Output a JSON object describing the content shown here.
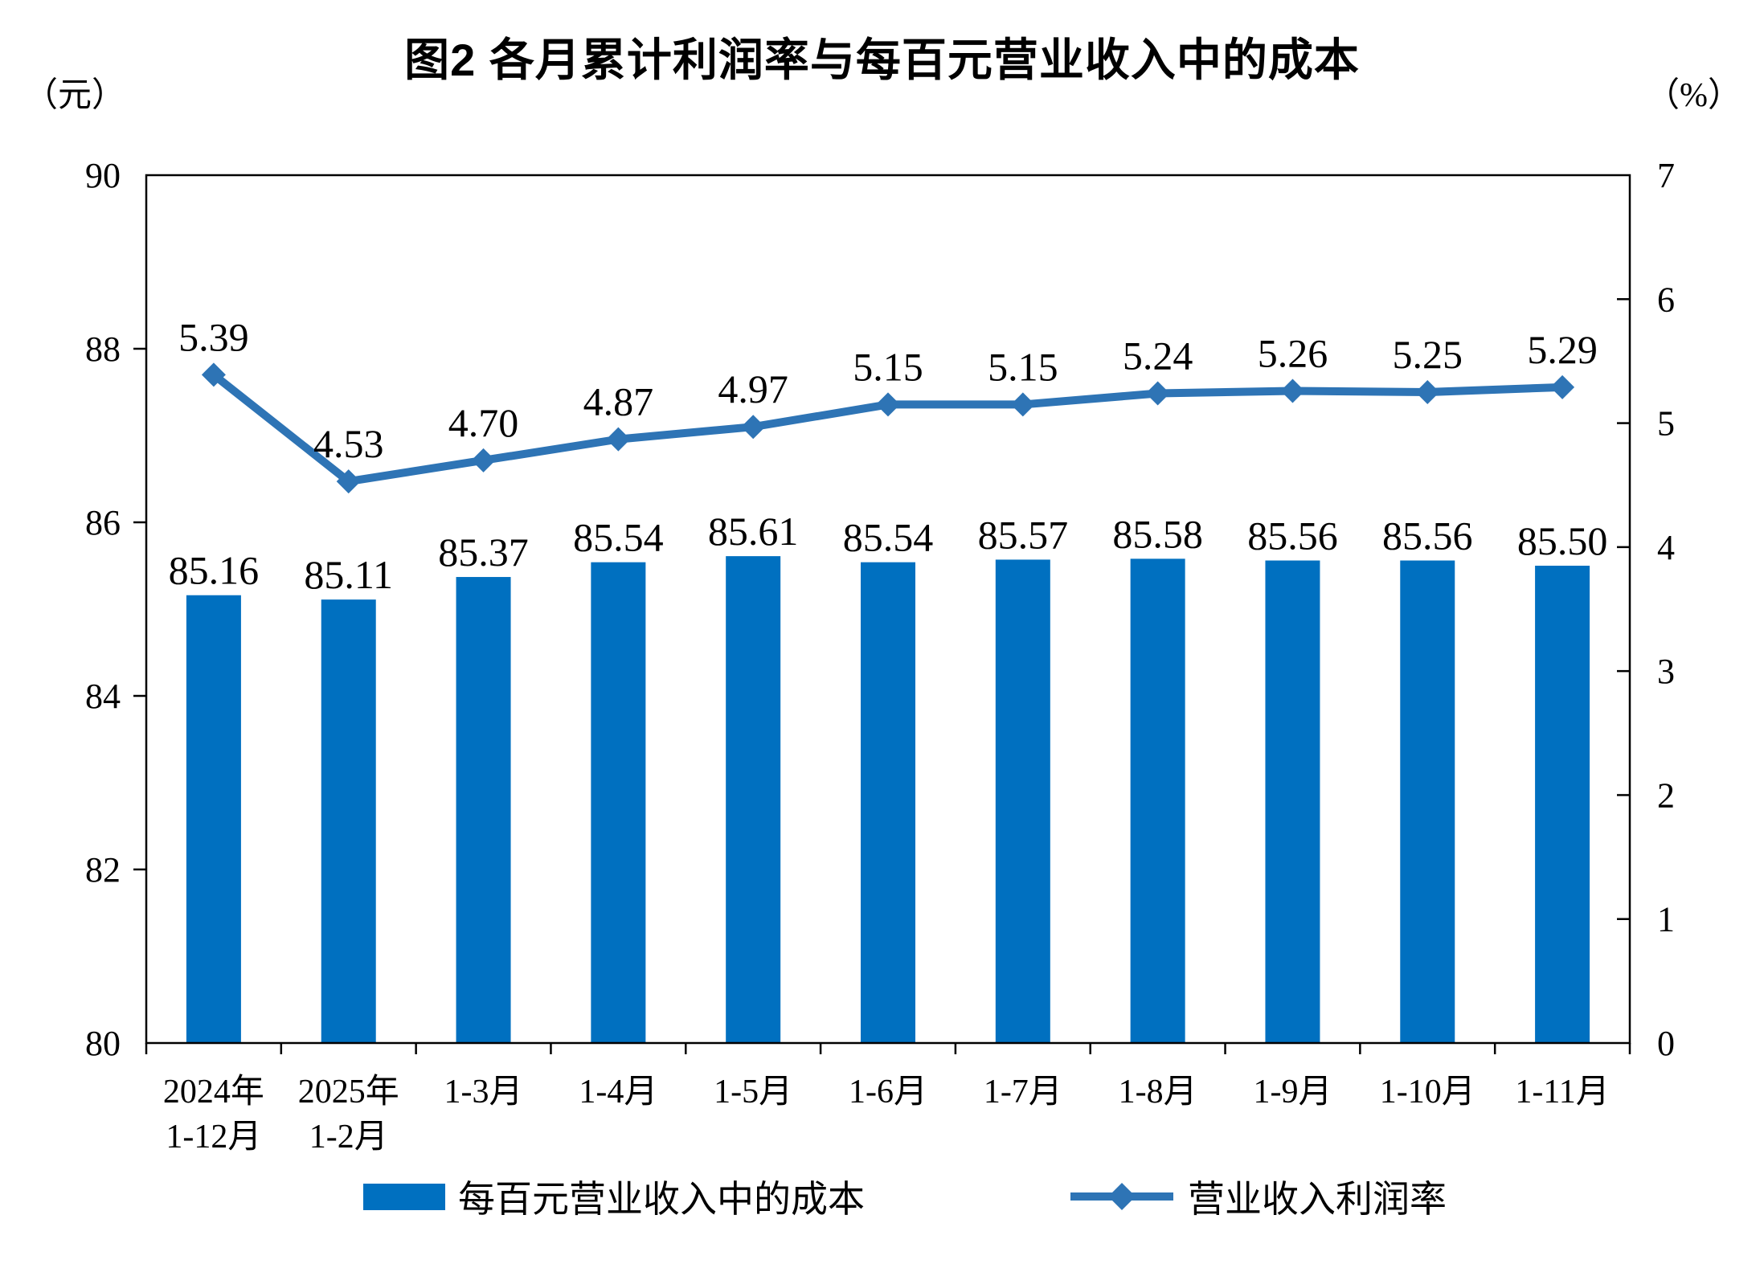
{
  "chart_data": {
    "type": "combo",
    "title": "图2 各月累计利润率与每百元营业收入中的成本",
    "categories": [
      "2024年\n1-12月",
      "2025年\n1-2月",
      "1-3月",
      "1-4月",
      "1-5月",
      "1-6月",
      "1-7月",
      "1-8月",
      "1-9月",
      "1-10月",
      "1-11月"
    ],
    "series": [
      {
        "name": "每百元营业收入中的成本",
        "type": "bar",
        "axis": "left",
        "color": "#0070C0",
        "values": [
          85.16,
          85.11,
          85.37,
          85.54,
          85.61,
          85.54,
          85.57,
          85.58,
          85.56,
          85.56,
          85.5
        ]
      },
      {
        "name": "营业收入利润率",
        "type": "line",
        "axis": "right",
        "marker": "diamond",
        "color": "#2E74B5",
        "values": [
          5.39,
          4.53,
          4.7,
          4.87,
          4.97,
          5.15,
          5.15,
          5.24,
          5.26,
          5.25,
          5.29
        ]
      }
    ],
    "left_axis": {
      "unit": "（元）",
      "min": 80,
      "max": 90,
      "step": 2
    },
    "right_axis": {
      "unit": "（%）",
      "min": 0,
      "max": 7,
      "step": 1
    },
    "legend_position": "bottom",
    "grid": false,
    "text_color": "#000000"
  }
}
